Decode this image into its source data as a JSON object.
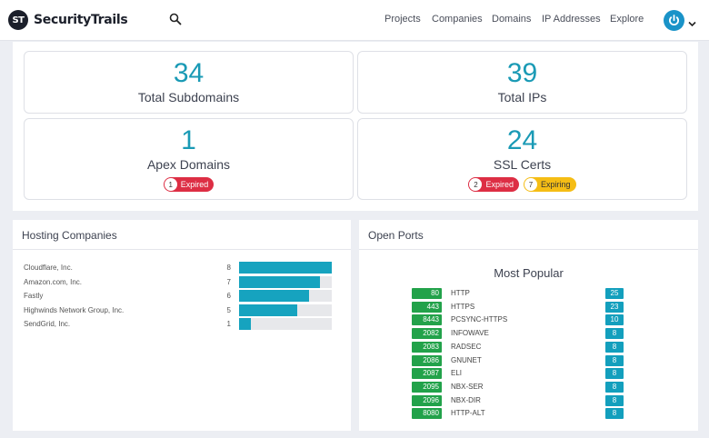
{
  "brand": {
    "logo_mark": "ST",
    "name": "SecurityTrails"
  },
  "nav": {
    "search_icon": "search-icon",
    "links": [
      "Projects",
      "Companies",
      "Domains",
      "IP Addresses",
      "Explore"
    ],
    "avatar_icon": "power-icon",
    "chevron_icon": "chevron-down-icon"
  },
  "stats": {
    "total_subdomains": {
      "value": "34",
      "label": "Total Subdomains"
    },
    "total_ips": {
      "value": "39",
      "label": "Total IPs"
    },
    "apex_domains": {
      "value": "1",
      "label": "Apex Domains",
      "expired_count": "1",
      "expired_label": "Expired"
    },
    "ssl_certs": {
      "value": "24",
      "label": "SSL Certs",
      "expired_count": "2",
      "expired_label": "Expired",
      "expiring_count": "7",
      "expiring_label": "Expiring"
    }
  },
  "hosting": {
    "title": "Hosting Companies",
    "max": 8,
    "rows": [
      {
        "name": "Cloudflare, Inc.",
        "count": 8
      },
      {
        "name": "Amazon.com, Inc.",
        "count": 7
      },
      {
        "name": "Fastly",
        "count": 6
      },
      {
        "name": "Highwinds Network Group, Inc.",
        "count": 5
      },
      {
        "name": "SendGrid, Inc.",
        "count": 1
      }
    ]
  },
  "ports": {
    "title": "Open Ports",
    "subtitle": "Most Popular",
    "rows": [
      {
        "port": "80",
        "name": "HTTP",
        "count": "25"
      },
      {
        "port": "443",
        "name": "HTTPS",
        "count": "23"
      },
      {
        "port": "8443",
        "name": "PCSYNC-HTTPS",
        "count": "10"
      },
      {
        "port": "2082",
        "name": "INFOWAVE",
        "count": "8"
      },
      {
        "port": "2083",
        "name": "RADSEC",
        "count": "8"
      },
      {
        "port": "2086",
        "name": "GNUNET",
        "count": "8"
      },
      {
        "port": "2087",
        "name": "ELI",
        "count": "8"
      },
      {
        "port": "2095",
        "name": "NBX-SER",
        "count": "8"
      },
      {
        "port": "2096",
        "name": "NBX-DIR",
        "count": "8"
      },
      {
        "port": "8080",
        "name": "HTTP-ALT",
        "count": "8"
      }
    ]
  },
  "colors": {
    "accent": "#1a9ab5",
    "bar": "#16a3bf",
    "port_green": "#22a24a",
    "badge_red": "#dd2e44",
    "badge_yellow": "#f5bd15"
  }
}
